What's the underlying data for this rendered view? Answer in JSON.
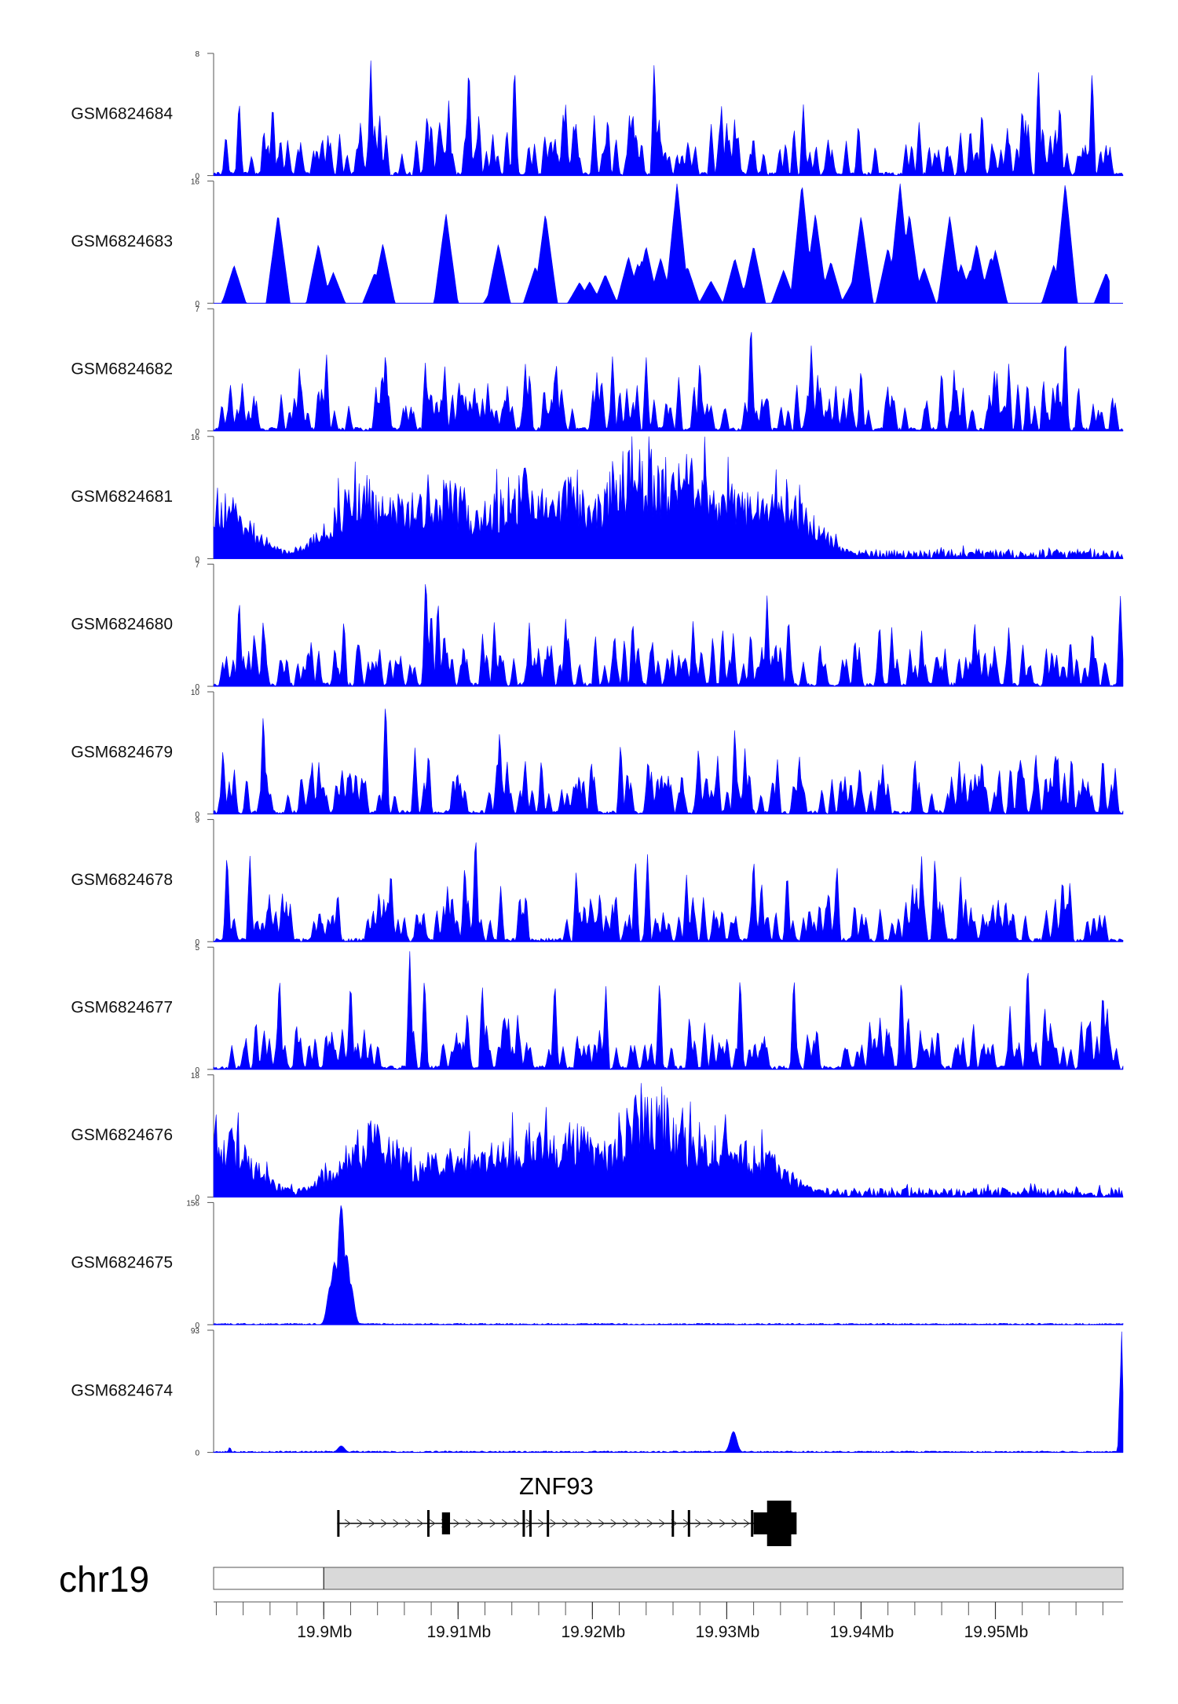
{
  "chart_data": {
    "type": "area",
    "chromosome": "chr19",
    "xrange": [
      19.8918,
      19.9595
    ],
    "x_unit": "Mb",
    "x_ticks": [
      19.9,
      19.91,
      19.92,
      19.93,
      19.94,
      19.95
    ],
    "x_tick_labels": [
      "19.9Mb",
      "19.91Mb",
      "19.92Mb",
      "19.93Mb",
      "19.94Mb",
      "19.95Mb"
    ],
    "highlight_region": [
      19.9,
      19.9595
    ],
    "fill_color": "#0000ff",
    "gene": {
      "name": "ZNF93",
      "strand": "+",
      "start": 19.901,
      "end": 19.9348,
      "exons": [
        {
          "start": 19.901,
          "end": 19.9012,
          "kind": "line"
        },
        {
          "start": 19.9077,
          "end": 19.9079,
          "kind": "line"
        },
        {
          "start": 19.9088,
          "end": 19.9094,
          "kind": "box"
        },
        {
          "start": 19.9148,
          "end": 19.915,
          "kind": "line"
        },
        {
          "start": 19.9153,
          "end": 19.9155,
          "kind": "line"
        },
        {
          "start": 19.9166,
          "end": 19.9168,
          "kind": "line"
        },
        {
          "start": 19.9259,
          "end": 19.9261,
          "kind": "line"
        },
        {
          "start": 19.9271,
          "end": 19.9273,
          "kind": "line"
        },
        {
          "start": 19.9318,
          "end": 19.932,
          "kind": "line"
        },
        {
          "start": 19.932,
          "end": 19.933,
          "kind": "box"
        },
        {
          "start": 19.933,
          "end": 19.9348,
          "kind": "bigbox"
        }
      ]
    },
    "tracks": [
      {
        "name": "GSM6824684",
        "max": 8,
        "style": "spiky",
        "gap": 0,
        "peaks": [
          [
            19.9108,
            7.6
          ],
          [
            19.9035,
            7.6
          ],
          [
            19.9142,
            7.6
          ],
          [
            19.9246,
            7.6
          ],
          [
            19.9532,
            7.1
          ],
          [
            19.9572,
            7.1
          ],
          [
            19.8937,
            5.2
          ],
          [
            19.8962,
            5.0
          ],
          [
            19.9093,
            5.0
          ],
          [
            19.918,
            4.8
          ],
          [
            19.923,
            4.5
          ],
          [
            19.9357,
            4.8
          ],
          [
            19.952,
            4.8
          ],
          [
            19.9548,
            5.0
          ],
          [
            19.949,
            4.5
          ],
          [
            19.9296,
            4.8
          ]
        ]
      },
      {
        "name": "GSM6824683",
        "max": 16,
        "style": "triangles",
        "gap": 1,
        "peaks": [
          [
            19.9263,
            15.8
          ],
          [
            19.9356,
            15.8
          ],
          [
            19.9429,
            15.8
          ],
          [
            19.9552,
            15.8
          ],
          [
            19.8966,
            11.8
          ],
          [
            19.9091,
            11.8
          ],
          [
            19.9165,
            11.8
          ],
          [
            19.9366,
            11.8
          ],
          [
            19.94,
            11.5
          ],
          [
            19.9436,
            11.8
          ],
          [
            19.9466,
            11.5
          ],
          [
            19.8996,
            7.8
          ],
          [
            19.9044,
            7.8
          ],
          [
            19.913,
            7.8
          ],
          [
            19.924,
            7.5
          ],
          [
            19.932,
            7.6
          ],
          [
            19.9486,
            7.8
          ],
          [
            19.95,
            7.0
          ],
          [
            19.942,
            7.3
          ]
        ]
      },
      {
        "name": "GSM6824682",
        "max": 7,
        "style": "spiky",
        "gap": 0,
        "peaks": [
          [
            19.9318,
            6.6
          ],
          [
            19.9552,
            5.8
          ],
          [
            19.9363,
            5.1
          ],
          [
            19.9046,
            4.8
          ],
          [
            19.9002,
            4.6
          ],
          [
            19.9215,
            4.4
          ],
          [
            19.951,
            4.0
          ],
          [
            19.915,
            4.0
          ],
          [
            19.928,
            4.2
          ],
          [
            19.924,
            4.3
          ],
          [
            19.909,
            3.9
          ],
          [
            19.94,
            3.8
          ],
          [
            19.946,
            3.7
          ],
          [
            19.8982,
            3.8
          ]
        ]
      },
      {
        "name": "GSM6824681",
        "max": 16,
        "style": "dense",
        "gap": 0,
        "peaks": [
          [
            19.9228,
            15.2
          ],
          [
            19.9243,
            15.0
          ],
          [
            19.927,
            14.0
          ],
          [
            19.9148,
            12.0
          ],
          [
            19.9177,
            11.6
          ],
          [
            19.9125,
            9.0
          ],
          [
            19.923,
            12.0
          ],
          [
            19.92,
            10.0
          ],
          [
            19.903,
            11.0
          ],
          [
            19.906,
            9.5
          ],
          [
            19.9093,
            10.5
          ],
          [
            19.926,
            13.0
          ],
          [
            19.9295,
            10.5
          ],
          [
            19.934,
            10.0
          ],
          [
            19.892,
            9.4
          ],
          [
            19.932,
            9.5
          ]
        ]
      },
      {
        "name": "GSM6824680",
        "max": 7,
        "style": "spiky",
        "gap": 0,
        "peaks": [
          [
            19.9076,
            6.7
          ],
          [
            19.8937,
            5.3
          ],
          [
            19.9085,
            5.2
          ],
          [
            19.908,
            4.7
          ],
          [
            19.933,
            5.2
          ],
          [
            19.9346,
            4.2
          ],
          [
            19.9593,
            5.3
          ],
          [
            19.8955,
            4.0
          ],
          [
            19.918,
            4.0
          ],
          [
            19.923,
            4.0
          ],
          [
            19.9275,
            3.9
          ],
          [
            19.9015,
            4.0
          ],
          [
            19.9445,
            3.3
          ],
          [
            19.951,
            3.5
          ]
        ]
      },
      {
        "name": "GSM6824679",
        "max": 10,
        "style": "spiky",
        "gap": 0,
        "peaks": [
          [
            19.9046,
            9.8
          ],
          [
            19.8955,
            8.6
          ],
          [
            19.9131,
            7.1
          ],
          [
            19.9221,
            6.1
          ],
          [
            19.9306,
            7.3
          ],
          [
            19.8925,
            5.5
          ],
          [
            19.9078,
            5.4
          ],
          [
            19.9279,
            5.7
          ],
          [
            19.953,
            5.2
          ],
          [
            19.958,
            5.0
          ],
          [
            19.9354,
            5.0
          ],
          [
            19.949,
            4.8
          ],
          [
            19.915,
            4.5
          ],
          [
            19.944,
            4.8
          ]
        ]
      },
      {
        "name": "GSM6824678",
        "max": 9,
        "style": "spiky",
        "gap": 0,
        "peaks": [
          [
            19.9113,
            8.4
          ],
          [
            19.8928,
            6.8
          ],
          [
            19.8945,
            6.5
          ],
          [
            19.9105,
            6.0
          ],
          [
            19.9232,
            6.5
          ],
          [
            19.9241,
            6.5
          ],
          [
            19.932,
            6.5
          ],
          [
            19.9445,
            6.5
          ],
          [
            19.9455,
            6.5
          ],
          [
            19.905,
            5.6
          ],
          [
            19.9188,
            5.4
          ],
          [
            19.9382,
            5.9
          ],
          [
            19.9345,
            5.4
          ],
          [
            19.927,
            5.0
          ],
          [
            19.955,
            5.0
          ]
        ]
      },
      {
        "name": "GSM6824677",
        "max": 5,
        "style": "spiky",
        "gap": 0,
        "peaks": [
          [
            19.9064,
            4.9
          ],
          [
            19.9524,
            4.6
          ],
          [
            19.931,
            4.0
          ],
          [
            19.935,
            4.0
          ],
          [
            19.8967,
            4.0
          ],
          [
            19.9075,
            4.0
          ],
          [
            19.902,
            3.8
          ],
          [
            19.925,
            3.8
          ],
          [
            19.943,
            4.0
          ],
          [
            19.9172,
            3.8
          ],
          [
            19.9118,
            3.6
          ],
          [
            19.921,
            3.5
          ],
          [
            19.958,
            3.4
          ]
        ]
      },
      {
        "name": "GSM6824676",
        "max": 18,
        "style": "dense",
        "gap": 0,
        "peaks": [
          [
            19.9243,
            17.8
          ],
          [
            19.9238,
            16.5
          ],
          [
            19.9253,
            13.0
          ],
          [
            19.9036,
            11.5
          ],
          [
            19.9155,
            11.3
          ],
          [
            19.9186,
            11.0
          ],
          [
            19.9285,
            11.4
          ],
          [
            19.93,
            10.0
          ],
          [
            19.9095,
            8.5
          ],
          [
            19.9132,
            8.5
          ],
          [
            19.8921,
            11.4
          ],
          [
            19.9318,
            8.5
          ],
          [
            19.92,
            8.0
          ],
          [
            19.927,
            9.5
          ]
        ]
      },
      {
        "name": "GSM6824675",
        "max": 156,
        "style": "single",
        "gap": 0,
        "peaks": [
          [
            19.9013,
            153
          ],
          [
            19.9008,
            80
          ],
          [
            19.902,
            52
          ],
          [
            19.9005,
            50
          ],
          [
            19.9017,
            90
          ]
        ]
      },
      {
        "name": "GSM6824674",
        "max": 93,
        "style": "single",
        "gap": 0,
        "peaks": [
          [
            19.9594,
            92
          ],
          [
            19.9593,
            60
          ],
          [
            19.9305,
            16
          ],
          [
            19.9013,
            5
          ],
          [
            19.893,
            4
          ]
        ]
      }
    ]
  }
}
